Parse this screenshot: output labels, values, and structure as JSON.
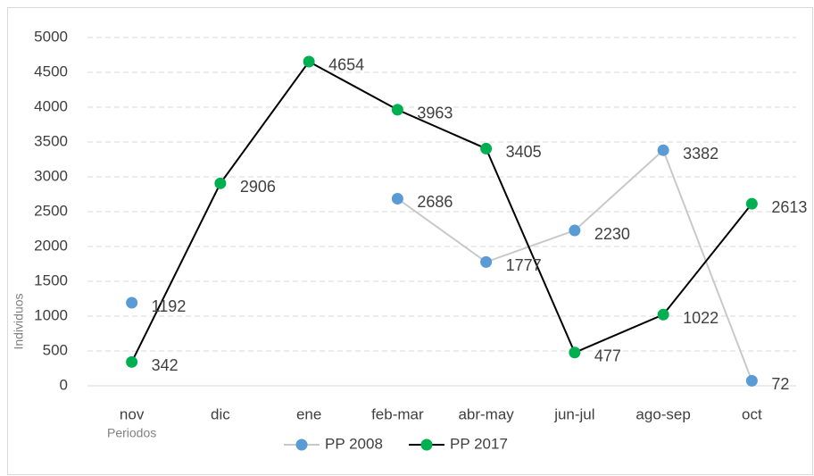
{
  "chart_data": {
    "type": "line",
    "categories": [
      "nov",
      "dic",
      "ene",
      "feb-mar",
      "abr-may",
      "jun-jul",
      "ago-sep",
      "oct"
    ],
    "series": [
      {
        "name": "PP 2008",
        "marker_color": "#5b9bd5",
        "line_color": "#c9c9c9",
        "values": [
          1192,
          null,
          null,
          2686,
          1777,
          2230,
          3382,
          72
        ]
      },
      {
        "name": "PP 2017",
        "marker_color": "#00b050",
        "line_color": "#000000",
        "values": [
          342,
          2906,
          4654,
          3963,
          3405,
          477,
          1022,
          2613
        ]
      }
    ],
    "xlabel": "Periodos",
    "ylabel": "Individuos",
    "ylim": [
      0,
      5000
    ],
    "yticks": [
      0,
      500,
      1000,
      1500,
      2000,
      2500,
      3000,
      3500,
      4000,
      4500,
      5000
    ],
    "grid": true,
    "legend": "bottom"
  }
}
